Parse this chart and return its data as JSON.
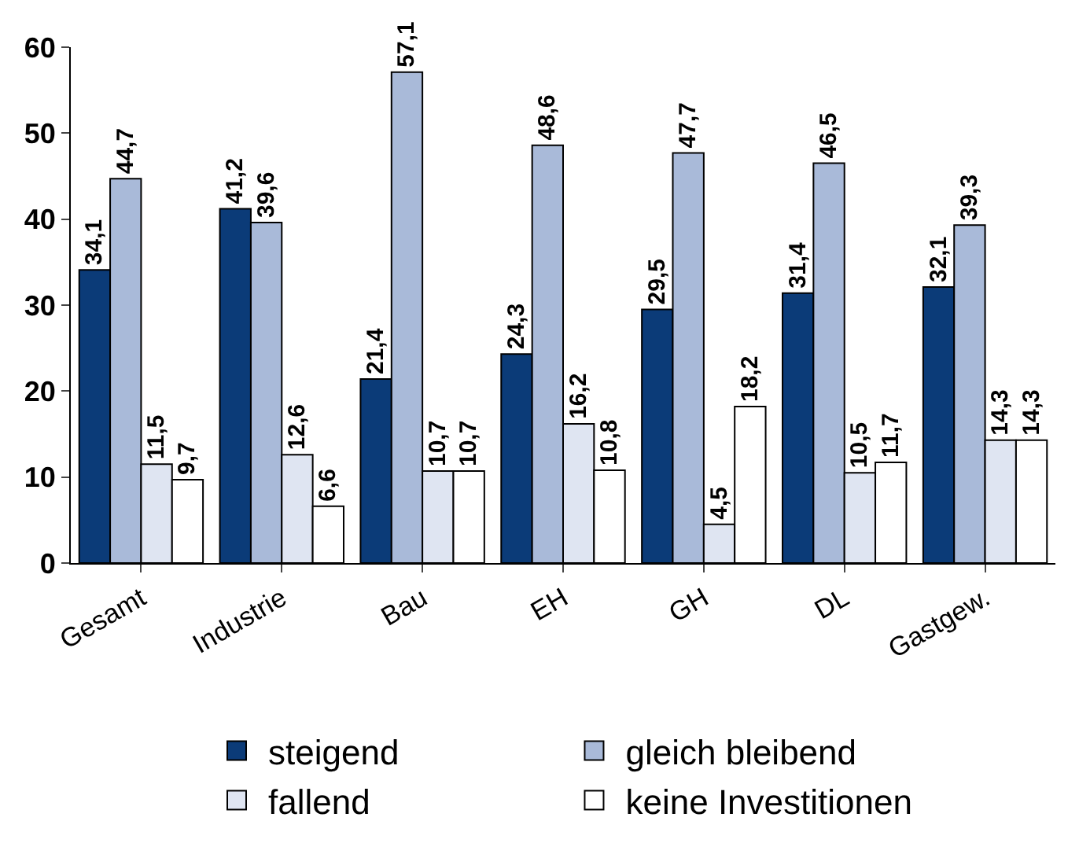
{
  "chart_data": {
    "type": "bar",
    "categories": [
      "Gesamt",
      "Industrie",
      "Bau",
      "EH",
      "GH",
      "DL",
      "Gastgew."
    ],
    "series": [
      {
        "name": "steigend",
        "color": "#0b3b78",
        "values": [
          34.1,
          41.2,
          21.4,
          24.3,
          29.5,
          31.4,
          32.1
        ],
        "value_labels": [
          "34,1",
          "41,2",
          "21,4",
          "24,3",
          "29,5",
          "31,4",
          "32,1"
        ]
      },
      {
        "name": "gleich bleibend",
        "color": "#a9bad9",
        "values": [
          44.7,
          39.6,
          57.1,
          48.6,
          47.7,
          46.5,
          39.3
        ],
        "value_labels": [
          "44,7",
          "39,6",
          "57,1",
          "48,6",
          "47,7",
          "46,5",
          "39,3"
        ]
      },
      {
        "name": "fallend",
        "color": "#dfe5f2",
        "values": [
          11.5,
          12.6,
          10.7,
          16.2,
          4.5,
          10.5,
          14.3
        ],
        "value_labels": [
          "11,5",
          "12,6",
          "10,7",
          "16,2",
          "4,5",
          "10,5",
          "14,3"
        ]
      },
      {
        "name": "keine Investitionen",
        "color": "#ffffff",
        "values": [
          9.7,
          6.6,
          10.7,
          10.8,
          18.2,
          11.7,
          14.3
        ],
        "value_labels": [
          "9,7",
          "6,6",
          "10,7",
          "10,8",
          "18,2",
          "11,7",
          "14,3"
        ]
      }
    ],
    "ylim": [
      0,
      60
    ],
    "yticks": [
      0,
      10,
      20,
      30,
      40,
      50,
      60
    ],
    "legend": "bottom"
  }
}
